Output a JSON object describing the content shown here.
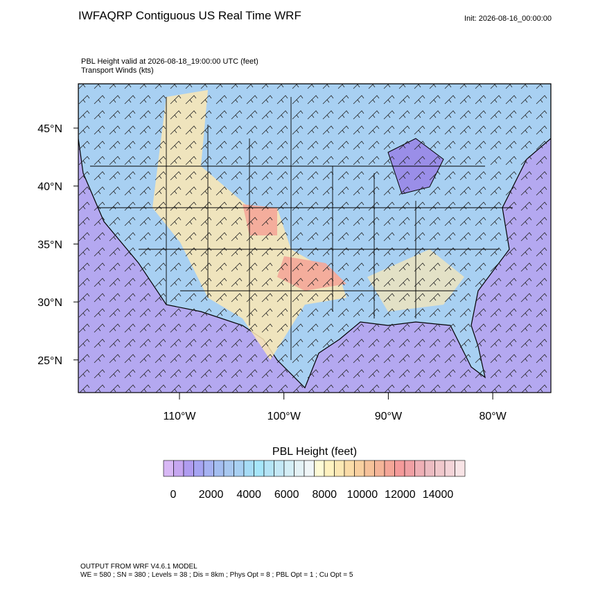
{
  "header": {
    "title": "IWFAQRP Contiguous US Real Time WRF",
    "init": "Init: 2026-08-16_00:00:00"
  },
  "map": {
    "field_label": "PBL Height valid at 2026-08-18_19:00:00 UTC   (feet)",
    "vector_label": "Transport Winds   (kts)",
    "lat_labels": [
      "45°N",
      "40°N",
      "35°N",
      "30°N",
      "25°N"
    ],
    "lon_labels": [
      "110°W",
      "100°W",
      "90°W",
      "80°W"
    ]
  },
  "colorbar": {
    "title": "PBL Height  (feet)",
    "labels": [
      "0",
      "2000",
      "4000",
      "6000",
      "8000",
      "10000",
      "12000",
      "14000"
    ],
    "colors": [
      "#d8b8f5",
      "#c6a6f0",
      "#b09cf0",
      "#a6a4f2",
      "#a6b2f2",
      "#a4bef0",
      "#a8c8f0",
      "#a8d0f2",
      "#a6dcf6",
      "#a6e6fa",
      "#b4e4f6",
      "#c4e8f6",
      "#d4eef6",
      "#e4f2f6",
      "#f0f6f8",
      "#fffbd6",
      "#fff2c0",
      "#fce8b4",
      "#fadca8",
      "#f8d0a0",
      "#f6c29a",
      "#f4b498",
      "#f4a698",
      "#f49a9a",
      "#f0a0a4",
      "#eeb0b6",
      "#ecbcc2",
      "#f0c8cc",
      "#f4d4d8",
      "#f8e4e6"
    ]
  },
  "footer": {
    "line1": "OUTPUT FROM WRF V4.6.1 MODEL",
    "line2": "WE = 580 ; SN = 380 ; Levels = 38 ; Dis = 8km ; Phys Opt = 8 ; PBL Opt = 1 ; Cu Opt = 5"
  }
}
